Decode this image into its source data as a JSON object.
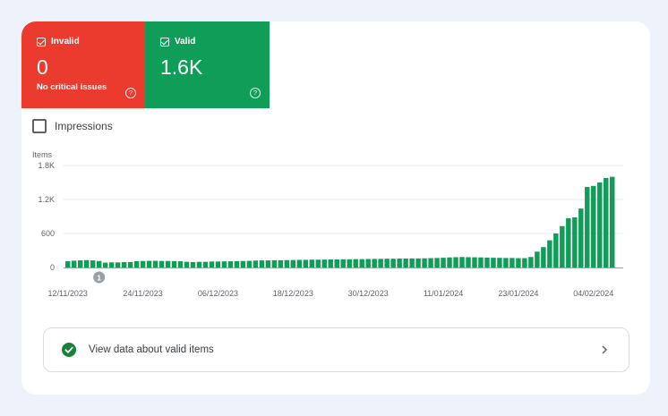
{
  "tiles": {
    "invalid": {
      "label": "Invalid",
      "value": "0",
      "subtitle": "No critical issues",
      "color": "#ea3b2e"
    },
    "valid": {
      "label": "Valid",
      "value": "1.6K",
      "color": "#109d58"
    }
  },
  "help_glyph": "?",
  "impressions": {
    "label": "Impressions",
    "checked": false
  },
  "annotation": {
    "label": "1"
  },
  "chart_data": {
    "type": "bar",
    "ylabel": "Items",
    "ylim": [
      0,
      1800
    ],
    "yticks": [
      "0",
      "600",
      "1.2K",
      "1.8K"
    ],
    "ytick_values": [
      0,
      600,
      1200,
      1800
    ],
    "xtick_labels": [
      "12/11/2023",
      "24/11/2023",
      "06/12/2023",
      "18/12/2023",
      "30/12/2023",
      "11/01/2024",
      "23/01/2024",
      "04/02/2024"
    ],
    "xtick_every": 12,
    "bar_color": "#0f9d58",
    "grid": true,
    "values": [
      110,
      120,
      125,
      130,
      125,
      115,
      85,
      90,
      90,
      95,
      95,
      110,
      115,
      118,
      118,
      115,
      115,
      112,
      110,
      100,
      95,
      100,
      100,
      105,
      105,
      108,
      110,
      112,
      115,
      118,
      122,
      125,
      125,
      128,
      128,
      130,
      132,
      135,
      135,
      138,
      138,
      140,
      142,
      142,
      145,
      145,
      148,
      148,
      150,
      152,
      152,
      155,
      155,
      158,
      158,
      160,
      160,
      162,
      165,
      168,
      172,
      178,
      182,
      185,
      182,
      180,
      178,
      175,
      172,
      170,
      168,
      168,
      165,
      165,
      185,
      280,
      360,
      480,
      600,
      730,
      870,
      885,
      1040,
      1420,
      1440,
      1500,
      1580,
      1600
    ]
  },
  "valid_items_row": {
    "label": "View data about valid items"
  }
}
